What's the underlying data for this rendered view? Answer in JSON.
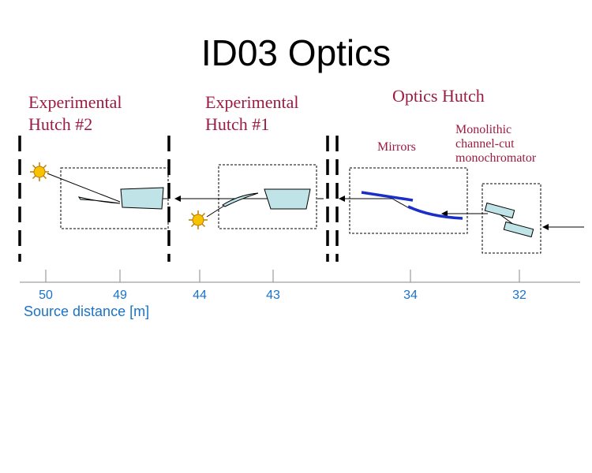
{
  "title": "ID03 Optics",
  "labels": {
    "exp_hutch_2": "Experimental\nHutch #2",
    "exp_hutch_1": "Experimental\nHutch #1",
    "optics_hutch": "Optics Hutch",
    "mirrors": "Mirrors",
    "monochromator": "Monolithic\nchannel-cut\nmonochromator"
  },
  "axis": {
    "label": "Source distance [m]",
    "ticks": [
      "50",
      "49",
      "44",
      "43",
      "34",
      "32"
    ]
  },
  "colors": {
    "label_color": "#9b1b42",
    "axis_color": "#1a73c8",
    "mirror_color": "#1a2ec8",
    "element_fill": "#bfe3e6"
  },
  "icons": [
    "sun-icon",
    "sun-icon"
  ]
}
